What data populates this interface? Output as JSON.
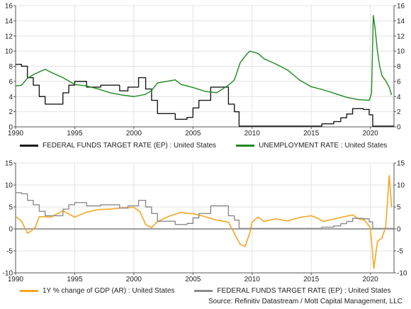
{
  "chart_data": [
    {
      "type": "line",
      "title": "",
      "xlabel": "",
      "ylabel": "",
      "xlim": [
        1990,
        2022
      ],
      "ylim": [
        0,
        16
      ],
      "x_ticks": [
        1990,
        1995,
        2000,
        2005,
        2010,
        2015,
        2020
      ],
      "y_ticks": [
        0,
        2,
        4,
        6,
        8,
        10,
        12,
        14,
        16
      ],
      "y_axis_sides": "left-and-right",
      "grid": true,
      "legend_placement": "bottom",
      "series": [
        {
          "name": "FEDERAL FUNDS TARGET RATE (EP) : United States",
          "color": "#1a1a1a",
          "step": true,
          "x": [
            1990,
            1990.5,
            1991,
            1991.5,
            1992,
            1992.5,
            1994,
            1994.5,
            1995,
            1996,
            1997.2,
            1998.8,
            1999.5,
            2000.4,
            2001,
            2001.5,
            2002,
            2003.5,
            2004.5,
            2005,
            2005.5,
            2006.5,
            2007.5,
            2008,
            2008.5,
            2008.9,
            2015.9,
            2016.9,
            2017.5,
            2018,
            2018.5,
            2019.4,
            2019.9,
            2020.2,
            2022
          ],
          "y": [
            8.25,
            8,
            6.5,
            5.5,
            4,
            3,
            4.5,
            5.5,
            6,
            5.25,
            5.5,
            4.75,
            5.25,
            6.5,
            5,
            3.5,
            1.75,
            1,
            1.25,
            2.5,
            3.5,
            5.25,
            5.25,
            3,
            2,
            0.1,
            0.4,
            0.7,
            1.2,
            1.7,
            2.4,
            2.3,
            1.6,
            0.1,
            0.1
          ]
        },
        {
          "name": "UNEMPLOYMENT RATE : United States",
          "color": "#1e8a1e",
          "x": [
            1990,
            1990.5,
            1991,
            1991.5,
            1992.5,
            1993,
            1994,
            1995,
            1996,
            1997,
            1998,
            1999,
            2000,
            2001,
            2001.5,
            2002,
            2003.5,
            2004,
            2005,
            2006,
            2007,
            2008,
            2008.5,
            2009,
            2009.5,
            2009.8,
            2010.5,
            2011,
            2012,
            2013,
            2014,
            2015,
            2016,
            2017,
            2018,
            2019,
            2019.9,
            2020.1,
            2020.25,
            2020.4,
            2020.6,
            2020.8,
            2021,
            2021.3,
            2021.6,
            2021.8
          ],
          "y": [
            5.4,
            5.5,
            6.4,
            6.9,
            7.6,
            7.2,
            6.5,
            5.6,
            5.4,
            5.0,
            4.5,
            4.2,
            4.0,
            4.3,
            4.8,
            5.8,
            6.2,
            5.6,
            5.2,
            4.7,
            4.5,
            5.5,
            6.2,
            8.5,
            9.5,
            10.0,
            9.7,
            9.0,
            8.3,
            7.5,
            6.2,
            5.3,
            4.9,
            4.4,
            3.9,
            3.6,
            3.5,
            4.4,
            14.7,
            13.0,
            10.0,
            7.9,
            6.7,
            6.1,
            5.2,
            4.2
          ]
        }
      ]
    },
    {
      "type": "line",
      "title": "",
      "xlabel": "",
      "ylabel": "",
      "xlim": [
        1990,
        2022
      ],
      "ylim": [
        -10,
        15
      ],
      "x_ticks": [
        1990,
        1995,
        2000,
        2005,
        2010,
        2015,
        2020
      ],
      "y_ticks": [
        -10,
        -5,
        0,
        5,
        10,
        15
      ],
      "y_axis_sides": "left-and-right",
      "grid": true,
      "zero_line": true,
      "legend_placement": "bottom",
      "series": [
        {
          "name": "1Y % change of GDP (AR) : United States",
          "color": "#f5a623",
          "x": [
            1990,
            1990.5,
            1991,
            1991.3,
            1991.7,
            1992,
            1993,
            1994,
            1995,
            1996,
            1997,
            1998,
            1999,
            2000,
            2000.5,
            2001,
            2001.5,
            2002,
            2003,
            2004,
            2004.5,
            2005,
            2006,
            2007,
            2007.5,
            2008,
            2008.5,
            2009,
            2009.4,
            2009.8,
            2010,
            2010.5,
            2011,
            2012,
            2013,
            2014,
            2015,
            2015.5,
            2016,
            2017,
            2018,
            2018.5,
            2019,
            2019.5,
            2020,
            2020.3,
            2020.6,
            2021,
            2021.3,
            2021.6,
            2021.8
          ],
          "y": [
            2.8,
            1.8,
            -1.0,
            -0.5,
            0.5,
            2.8,
            2.7,
            4.1,
            2.7,
            3.8,
            4.4,
            4.5,
            4.8,
            4.9,
            4.0,
            1.0,
            0.3,
            1.7,
            2.9,
            3.8,
            3.5,
            3.5,
            2.8,
            2.0,
            1.8,
            1.5,
            -1.0,
            -3.5,
            -4.0,
            -1.0,
            1.5,
            2.7,
            1.7,
            2.3,
            1.8,
            2.6,
            3.0,
            2.5,
            1.7,
            2.3,
            2.9,
            3.2,
            2.3,
            2.0,
            0.3,
            -9.0,
            -2.9,
            -2.0,
            0.5,
            12.2,
            4.9
          ]
        },
        {
          "name": "FEDERAL FUNDS TARGET RATE (EP) : United States",
          "color": "#8c8c8c",
          "step": true,
          "x": [
            1990,
            1990.5,
            1991,
            1991.5,
            1992,
            1992.5,
            1994,
            1994.5,
            1995,
            1996,
            1997.2,
            1998.8,
            1999.5,
            2000.4,
            2001,
            2001.5,
            2002,
            2003.5,
            2004.5,
            2005,
            2005.5,
            2006.5,
            2007.5,
            2008,
            2008.5,
            2008.9,
            2015.9,
            2016.9,
            2017.5,
            2018,
            2018.5,
            2019.4,
            2019.9,
            2020.2,
            2022
          ],
          "y": [
            8.25,
            8,
            6.5,
            5.5,
            4,
            3,
            4.5,
            5.5,
            6,
            5.25,
            5.5,
            4.75,
            5.25,
            6.5,
            5,
            3.5,
            1.75,
            1,
            1.25,
            2.5,
            3.5,
            5.25,
            5.25,
            3,
            2,
            0.1,
            0.4,
            0.7,
            1.2,
            1.7,
            2.4,
            2.3,
            1.6,
            0.1,
            0.1
          ]
        }
      ]
    }
  ],
  "legends": {
    "top": [
      {
        "label": "FEDERAL FUNDS TARGET RATE (EP) : United States",
        "color": "#1a1a1a"
      },
      {
        "label": "UNEMPLOYMENT RATE : United States",
        "color": "#1e8a1e"
      }
    ],
    "bottom": [
      {
        "label": "1Y % change of GDP (AR) : United States",
        "color": "#f5a623"
      },
      {
        "label": "FEDERAL FUNDS TARGET RATE (EP) : United States",
        "color": "#8c8c8c"
      }
    ]
  },
  "source": "Source: Refinitiv Datastream / Mott Capital Management, LLC",
  "colors": {
    "grid": "#e3e3e3",
    "axis": "#555555",
    "zero_line": "#666666"
  }
}
